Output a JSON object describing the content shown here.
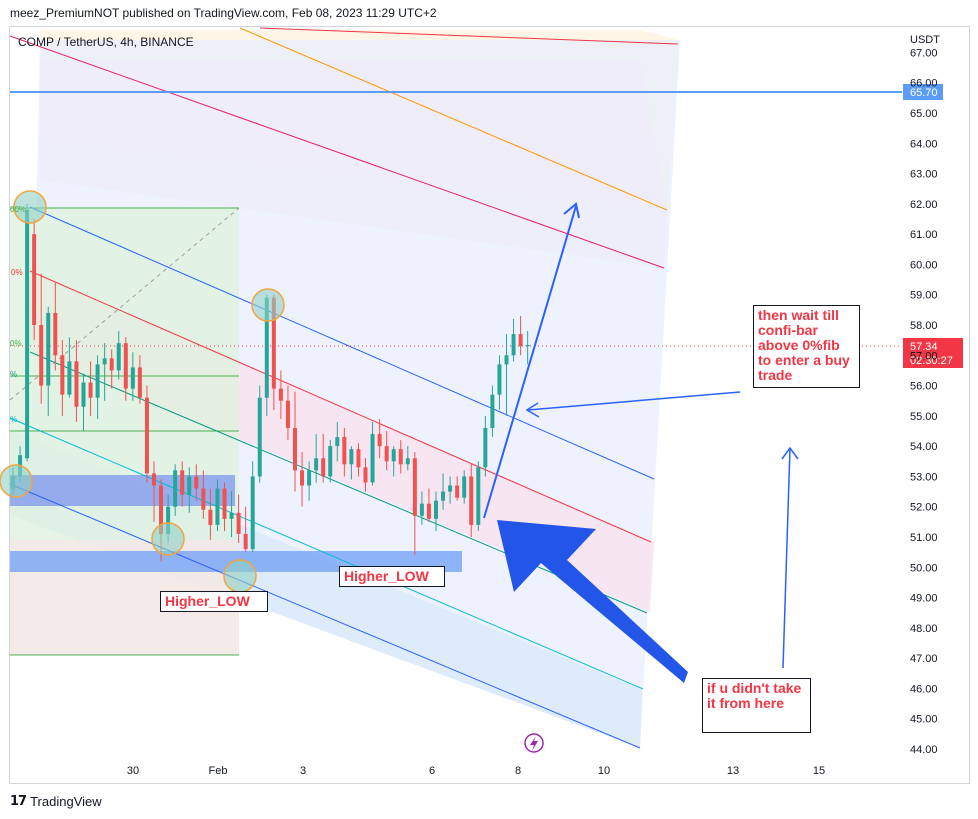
{
  "header": {
    "published": "meez_PremiumNOT published on TradingView.com, Feb 08, 2023 11:29 UTC+2"
  },
  "symbol_line": "COMP / TetherUS, 4h, BINANCE",
  "footer": {
    "brand": "TradingView",
    "mark": "17"
  },
  "notes": {
    "higher_low_1": "Higher_LOW",
    "higher_low_2": "Higher_LOW",
    "entry": "then wait till confi-bar above 0%fib to enter a buy trade",
    "missed": "if u didn't take it from here"
  },
  "colors": {
    "bull": "#26a69a",
    "bear": "#ef5350",
    "hline": "#5b9cf6",
    "price_label": "#f23645",
    "arrow": "#1f4fe0",
    "note_text": "#f23645"
  },
  "icons": {
    "lightning": "lightning-icon"
  },
  "chart_data": {
    "type": "candlestick",
    "title": "COMP / TetherUS, 4h, BINANCE",
    "y_axis": {
      "unit": "USDT",
      "ticks": [
        "44.00",
        "45.00",
        "46.00",
        "47.00",
        "48.00",
        "49.00",
        "50.00",
        "51.00",
        "52.00",
        "53.00",
        "54.00",
        "55.00",
        "56.00",
        "57.00",
        "58.00",
        "59.00",
        "60.00",
        "61.00",
        "62.00",
        "63.00",
        "64.00",
        "65.00",
        "66.00",
        "67.00"
      ],
      "range": [
        43.6,
        67.8
      ]
    },
    "x_axis": {
      "ticks": [
        "30",
        "Feb",
        "3",
        "6",
        "8",
        "10",
        "13",
        "15"
      ]
    },
    "price_labels": {
      "hline": "65.70",
      "last": "57.34",
      "countdown": "02:30:27"
    },
    "fib_labels": [
      "00%",
      "0%",
      "0%",
      "%",
      "%"
    ],
    "candles": [
      {
        "o": 52.6,
        "h": 53.3,
        "l": 52.4,
        "c": 53.0
      },
      {
        "o": 53.0,
        "h": 54.0,
        "l": 52.8,
        "c": 53.7
      },
      {
        "o": 53.6,
        "h": 62.0,
        "l": 53.5,
        "c": 61.8
      },
      {
        "o": 61.0,
        "h": 61.5,
        "l": 57.5,
        "c": 58.0
      },
      {
        "o": 58.0,
        "h": 59.7,
        "l": 55.4,
        "c": 56.0
      },
      {
        "o": 56.0,
        "h": 58.6,
        "l": 55.0,
        "c": 58.4
      },
      {
        "o": 58.4,
        "h": 59.4,
        "l": 56.5,
        "c": 57.0
      },
      {
        "o": 57.0,
        "h": 57.5,
        "l": 55.0,
        "c": 55.7
      },
      {
        "o": 55.7,
        "h": 57.6,
        "l": 55.6,
        "c": 56.8
      },
      {
        "o": 56.8,
        "h": 57.5,
        "l": 54.8,
        "c": 55.3
      },
      {
        "o": 55.3,
        "h": 56.4,
        "l": 54.5,
        "c": 56.1
      },
      {
        "o": 56.1,
        "h": 56.8,
        "l": 55.0,
        "c": 55.6
      },
      {
        "o": 55.6,
        "h": 57.0,
        "l": 54.9,
        "c": 56.7
      },
      {
        "o": 56.7,
        "h": 57.4,
        "l": 55.5,
        "c": 56.9
      },
      {
        "o": 56.9,
        "h": 57.2,
        "l": 55.9,
        "c": 56.5
      },
      {
        "o": 56.5,
        "h": 57.8,
        "l": 56.2,
        "c": 57.4
      },
      {
        "o": 57.4,
        "h": 57.6,
        "l": 55.5,
        "c": 55.9
      },
      {
        "o": 55.9,
        "h": 57.1,
        "l": 55.5,
        "c": 56.6
      },
      {
        "o": 56.6,
        "h": 57.0,
        "l": 55.4,
        "c": 55.6
      },
      {
        "o": 55.6,
        "h": 56.0,
        "l": 52.8,
        "c": 53.1
      },
      {
        "o": 53.1,
        "h": 53.5,
        "l": 51.5,
        "c": 52.7
      },
      {
        "o": 52.7,
        "h": 52.9,
        "l": 50.2,
        "c": 51.1
      },
      {
        "o": 51.1,
        "h": 52.4,
        "l": 50.8,
        "c": 52.0
      },
      {
        "o": 52.0,
        "h": 53.4,
        "l": 51.7,
        "c": 53.2
      },
      {
        "o": 53.2,
        "h": 53.5,
        "l": 52.0,
        "c": 52.4
      },
      {
        "o": 52.4,
        "h": 53.3,
        "l": 51.8,
        "c": 53.0
      },
      {
        "o": 53.0,
        "h": 53.4,
        "l": 52.2,
        "c": 52.6
      },
      {
        "o": 52.6,
        "h": 53.2,
        "l": 51.6,
        "c": 51.9
      },
      {
        "o": 51.9,
        "h": 52.6,
        "l": 50.9,
        "c": 51.4
      },
      {
        "o": 51.4,
        "h": 52.9,
        "l": 51.2,
        "c": 52.6
      },
      {
        "o": 52.6,
        "h": 52.8,
        "l": 51.2,
        "c": 51.6
      },
      {
        "o": 51.6,
        "h": 52.5,
        "l": 51.0,
        "c": 51.8
      },
      {
        "o": 51.8,
        "h": 52.4,
        "l": 50.8,
        "c": 51.1
      },
      {
        "o": 51.1,
        "h": 52.0,
        "l": 50.5,
        "c": 50.6
      },
      {
        "o": 50.6,
        "h": 53.5,
        "l": 50.5,
        "c": 53.0
      },
      {
        "o": 53.0,
        "h": 56.0,
        "l": 52.8,
        "c": 55.6
      },
      {
        "o": 55.6,
        "h": 59.0,
        "l": 55.0,
        "c": 58.9
      },
      {
        "o": 58.9,
        "h": 59.0,
        "l": 55.2,
        "c": 55.9
      },
      {
        "o": 55.9,
        "h": 56.5,
        "l": 54.9,
        "c": 55.5
      },
      {
        "o": 55.5,
        "h": 56.0,
        "l": 54.2,
        "c": 54.6
      },
      {
        "o": 54.6,
        "h": 55.8,
        "l": 52.5,
        "c": 53.2
      },
      {
        "o": 53.2,
        "h": 53.8,
        "l": 52.0,
        "c": 52.7
      },
      {
        "o": 52.7,
        "h": 53.5,
        "l": 52.2,
        "c": 53.2
      },
      {
        "o": 53.2,
        "h": 54.4,
        "l": 52.8,
        "c": 53.6
      },
      {
        "o": 53.6,
        "h": 54.4,
        "l": 52.8,
        "c": 53.0
      },
      {
        "o": 53.0,
        "h": 54.2,
        "l": 52.8,
        "c": 54.0
      },
      {
        "o": 54.0,
        "h": 54.8,
        "l": 53.5,
        "c": 54.3
      },
      {
        "o": 54.3,
        "h": 54.6,
        "l": 53.0,
        "c": 53.4
      },
      {
        "o": 53.4,
        "h": 54.0,
        "l": 52.9,
        "c": 53.9
      },
      {
        "o": 53.9,
        "h": 54.1,
        "l": 53.0,
        "c": 53.3
      },
      {
        "o": 53.3,
        "h": 53.6,
        "l": 52.5,
        "c": 52.8
      },
      {
        "o": 52.8,
        "h": 54.8,
        "l": 52.7,
        "c": 54.4
      },
      {
        "o": 54.4,
        "h": 54.9,
        "l": 53.6,
        "c": 54.0
      },
      {
        "o": 54.0,
        "h": 54.5,
        "l": 53.2,
        "c": 53.5
      },
      {
        "o": 53.5,
        "h": 54.0,
        "l": 53.0,
        "c": 53.9
      },
      {
        "o": 53.9,
        "h": 54.2,
        "l": 53.1,
        "c": 53.4
      },
      {
        "o": 53.4,
        "h": 54.0,
        "l": 53.2,
        "c": 53.6
      },
      {
        "o": 53.6,
        "h": 53.8,
        "l": 50.4,
        "c": 51.7
      },
      {
        "o": 51.7,
        "h": 52.5,
        "l": 51.4,
        "c": 52.1
      },
      {
        "o": 52.1,
        "h": 52.6,
        "l": 51.5,
        "c": 51.6
      },
      {
        "o": 51.6,
        "h": 52.5,
        "l": 51.2,
        "c": 52.2
      },
      {
        "o": 52.2,
        "h": 53.1,
        "l": 51.9,
        "c": 52.5
      },
      {
        "o": 52.5,
        "h": 53.0,
        "l": 52.1,
        "c": 52.7
      },
      {
        "o": 52.7,
        "h": 53.0,
        "l": 52.2,
        "c": 52.3
      },
      {
        "o": 52.3,
        "h": 53.2,
        "l": 52.1,
        "c": 53.0
      },
      {
        "o": 53.0,
        "h": 53.4,
        "l": 51.0,
        "c": 51.4
      },
      {
        "o": 51.4,
        "h": 53.5,
        "l": 51.2,
        "c": 53.3
      },
      {
        "o": 53.3,
        "h": 55.0,
        "l": 53.0,
        "c": 54.6
      },
      {
        "o": 54.6,
        "h": 56.0,
        "l": 54.3,
        "c": 55.7
      },
      {
        "o": 55.7,
        "h": 57.0,
        "l": 55.2,
        "c": 56.7
      },
      {
        "o": 56.7,
        "h": 57.7,
        "l": 55.0,
        "c": 57.0
      },
      {
        "o": 57.0,
        "h": 58.2,
        "l": 56.8,
        "c": 57.7
      },
      {
        "o": 57.7,
        "h": 58.3,
        "l": 57.0,
        "c": 57.3
      },
      {
        "o": 57.3,
        "h": 57.8,
        "l": 56.7,
        "c": 57.34
      }
    ]
  }
}
